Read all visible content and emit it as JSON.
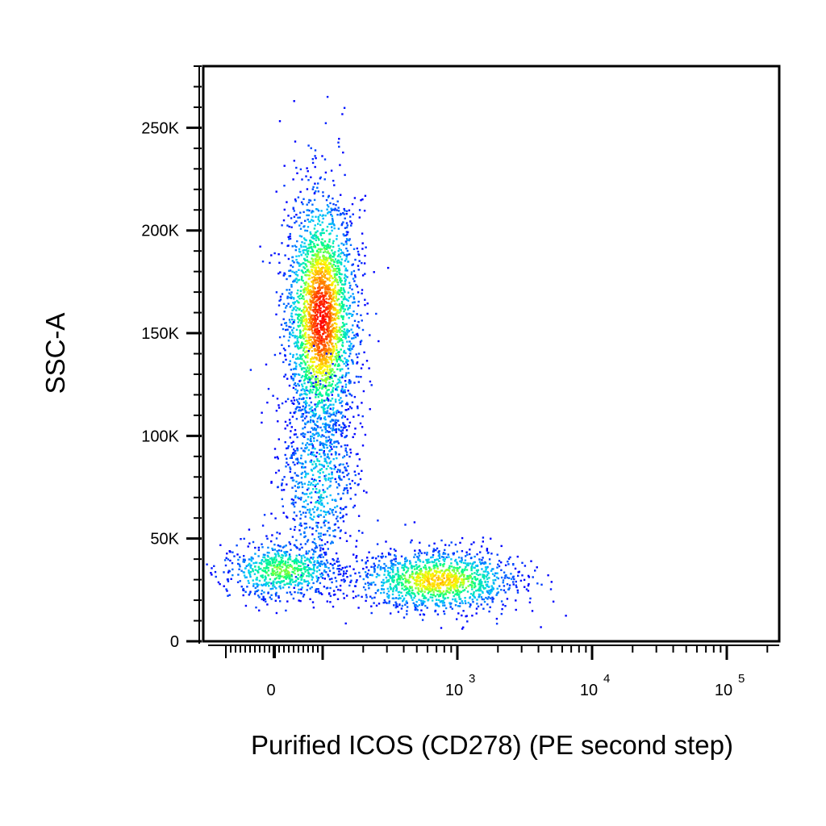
{
  "chart_data": {
    "type": "scatter",
    "title": "",
    "xlabel": "Purified ICOS (CD278) (PE second step)",
    "ylabel": "SSC-A",
    "x_scale": "biexponential",
    "xlim": [
      -100,
      150000
    ],
    "ylim": [
      0,
      280000
    ],
    "grid": false,
    "colormap": [
      "#0000ff",
      "#00c8ff",
      "#00ff80",
      "#ffff00",
      "#ff8000",
      "#ff0000"
    ],
    "y_ticks": [
      {
        "value": 0,
        "label": "0"
      },
      {
        "value": 50000,
        "label": "50K"
      },
      {
        "value": 100000,
        "label": "100K"
      },
      {
        "value": 150000,
        "label": "150K"
      },
      {
        "value": 200000,
        "label": "200K"
      },
      {
        "value": 250000,
        "label": "250K"
      }
    ],
    "x_ticks": [
      {
        "value": 0,
        "base": "0",
        "exp": ""
      },
      {
        "value": 1000,
        "base": "10",
        "exp": "3"
      },
      {
        "value": 10000,
        "base": "10",
        "exp": "4"
      },
      {
        "value": 100000,
        "base": "10",
        "exp": "5"
      }
    ],
    "populations": [
      {
        "name": "",
        "count": 2600,
        "center": [
          95,
          158000
        ],
        "spread_log": 0.13,
        "spread_y": 30000,
        "peak_density": 1.0
      },
      {
        "name": "",
        "count": 700,
        "center": [
          90,
          80000
        ],
        "spread_log": 0.15,
        "spread_y": 25000,
        "peak_density": 0.25
      },
      {
        "name": "",
        "count": 700,
        "center": [
          15,
          35000
        ],
        "spread_log": 0.22,
        "spread_y": 7000,
        "peak_density": 0.5
      },
      {
        "name": "",
        "count": 1300,
        "center": [
          700,
          30000
        ],
        "spread_log": 0.3,
        "spread_y": 7500,
        "peak_density": 0.7
      }
    ]
  }
}
